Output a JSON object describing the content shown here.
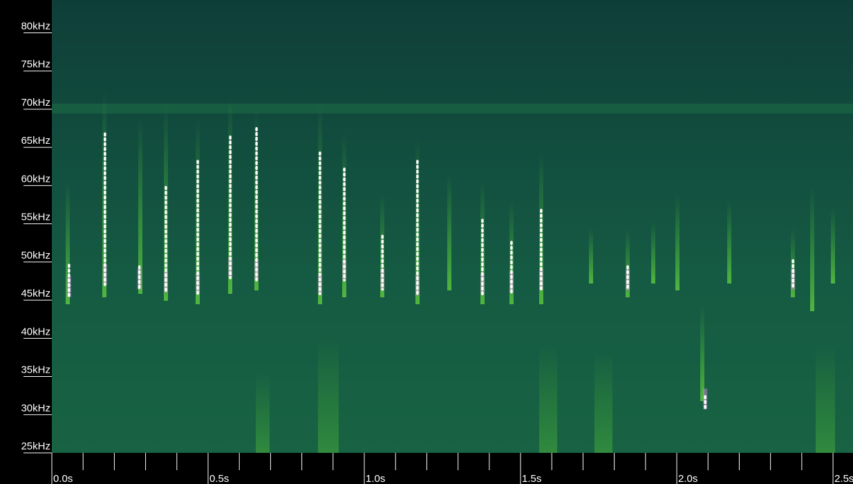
{
  "chart_data": {
    "type": "spectrogram",
    "ylim": [
      25,
      84.3
    ],
    "yticks": [
      {
        "value": 25,
        "label": "25kHz"
      },
      {
        "value": 30,
        "label": "30kHz"
      },
      {
        "value": 35,
        "label": "35kHz"
      },
      {
        "value": 40,
        "label": "40kHz"
      },
      {
        "value": 45,
        "label": "45kHz"
      },
      {
        "value": 50,
        "label": "50kHz"
      },
      {
        "value": 55,
        "label": "55kHz"
      },
      {
        "value": 60,
        "label": "60kHz"
      },
      {
        "value": 65,
        "label": "65kHz"
      },
      {
        "value": 70,
        "label": "70kHz"
      },
      {
        "value": 75,
        "label": "75kHz"
      },
      {
        "value": 80,
        "label": "80kHz"
      }
    ],
    "xlim": [
      0,
      2.564
    ],
    "xticks": [
      {
        "value": 0,
        "label": "0.0s"
      },
      {
        "value": 0.5,
        "label": "0.5s"
      },
      {
        "value": 1,
        "label": "1.0s"
      },
      {
        "value": 1.5,
        "label": "1.5s"
      },
      {
        "value": 2,
        "label": "2.0s"
      },
      {
        "value": 2.5,
        "label": "2.5s"
      }
    ],
    "x_minor_ticks": [
      0.1,
      0.2,
      0.3,
      0.4,
      0.6,
      0.7,
      0.8,
      0.9,
      1.1,
      1.2,
      1.3,
      1.4,
      1.6,
      1.7,
      1.8,
      1.9,
      2.1,
      2.2,
      2.3,
      2.4
    ],
    "color": "#ffffff",
    "x": [
      0.055,
      0.17,
      0.28,
      0.365,
      0.467,
      0.571,
      0.655,
      0.858,
      0.936,
      1.058,
      1.17,
      1.378,
      1.471,
      1.566,
      1.843,
      2.091,
      2.372
    ],
    "fmin": [
      45.4,
      47.0,
      46.4,
      46.0,
      45.8,
      47.9,
      47.6,
      45.8,
      47.6,
      46.4,
      45.6,
      45.8,
      46.0,
      46.4,
      46.3,
      30.7,
      46.4
    ],
    "fmax": [
      49.6,
      66.8,
      49.4,
      59.8,
      63.2,
      66.4,
      67.5,
      64.3,
      62.2,
      53.4,
      63.2,
      55.5,
      52.6,
      56.8,
      49.4,
      32.4,
      50.2
    ]
  }
}
